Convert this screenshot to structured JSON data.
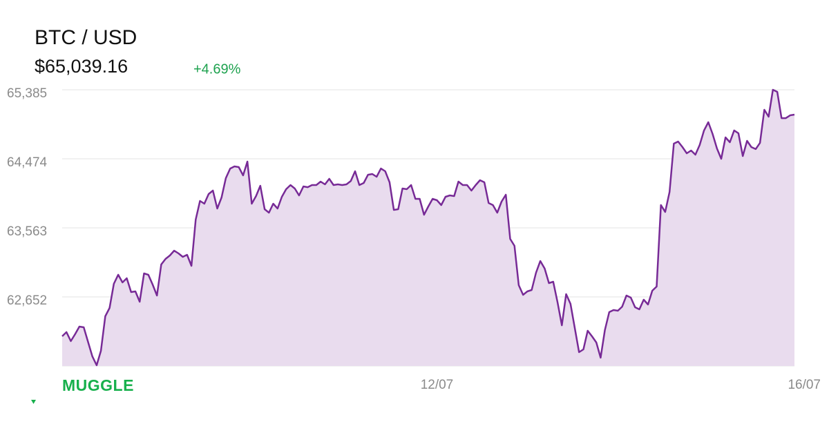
{
  "header": {
    "title": "BTC / USD",
    "price": "$65,039.16",
    "change": "+4.69%"
  },
  "brand": "MUGGLE",
  "chart_data": {
    "type": "line",
    "color": "#772a96",
    "fill_color": "#e9dcee",
    "grid": true,
    "xlim": [
      0,
      170
    ],
    "xticks": [
      {
        "value": 87,
        "label": "12/07"
      },
      {
        "value": 170,
        "label": "16/07"
      }
    ],
    "ylim": [
      61741,
      65385
    ],
    "yticks": [
      {
        "value": 62652,
        "label": "62,652"
      },
      {
        "value": 63563,
        "label": "63,563"
      },
      {
        "value": 64474,
        "label": "64,474"
      },
      {
        "value": 65385,
        "label": "65,385"
      }
    ],
    "values": [
      62133,
      62187,
      62069,
      62160,
      62260,
      62251,
      62060,
      61869,
      61750,
      61941,
      62397,
      62506,
      62825,
      62944,
      62843,
      62898,
      62716,
      62725,
      62588,
      62962,
      62944,
      62816,
      62670,
      63080,
      63153,
      63199,
      63262,
      63226,
      63180,
      63208,
      63062,
      63672,
      63918,
      63882,
      64009,
      64055,
      63818,
      63964,
      64219,
      64346,
      64374,
      64365,
      64255,
      64438,
      63882,
      63982,
      64119,
      63809,
      63763,
      63882,
      63818,
      63973,
      64073,
      64128,
      64082,
      63991,
      64110,
      64100,
      64128,
      64128,
      64173,
      64137,
      64210,
      64128,
      64137,
      64128,
      64137,
      64182,
      64310,
      64128,
      64155,
      64264,
      64274,
      64237,
      64346,
      64310,
      64164,
      63800,
      63809,
      64082,
      64073,
      64128,
      63946,
      63946,
      63736,
      63845,
      63946,
      63927,
      63864,
      63973,
      63991,
      63982,
      64173,
      64128,
      64128,
      64055,
      64128,
      64192,
      64164,
      63891,
      63864,
      63763,
      63909,
      64000,
      63417,
      63326,
      62807,
      62679,
      62725,
      62743,
      62971,
      63126,
      63026,
      62834,
      62852,
      62579,
      62278,
      62688,
      62561,
      62242,
      61923,
      61960,
      62206,
      62133,
      62051,
      61850,
      62215,
      62452,
      62479,
      62470,
      62524,
      62670,
      62643,
      62515,
      62488,
      62616,
      62552,
      62734,
      62789,
      63864,
      63773,
      64037,
      64674,
      64702,
      64629,
      64547,
      64583,
      64529,
      64656,
      64848,
      64957,
      64802,
      64611,
      64474,
      64756,
      64693,
      64848,
      64811,
      64510,
      64711,
      64629,
      64602,
      64684,
      65121,
      65030,
      65385,
      65358,
      65011,
      65011,
      65048,
      65057
    ]
  }
}
